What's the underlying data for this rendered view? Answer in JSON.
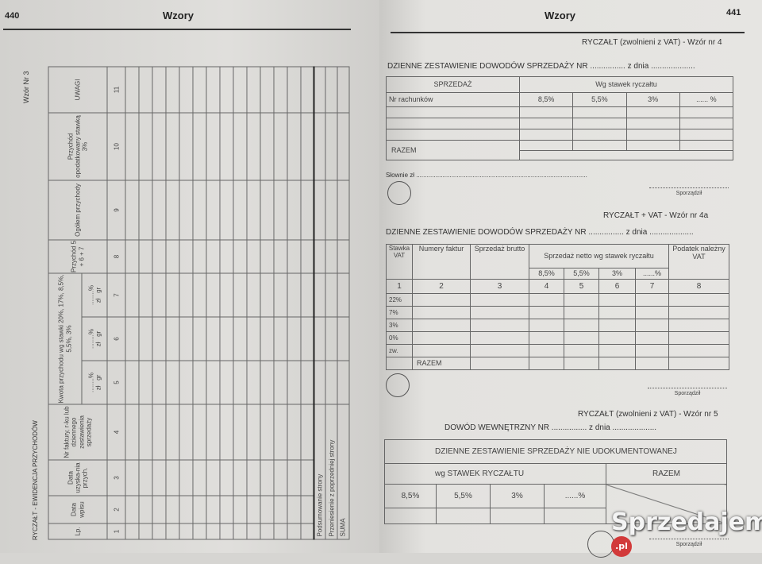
{
  "left_page": {
    "page_number": "440",
    "title": "Wzory",
    "form_id": "Wzór Nr 3",
    "form_title": "RYCZAŁT - EWIDENCJA PRZYCHODÓW",
    "columns": [
      "Lp.",
      "Data wpisu",
      "Data uzyska-nia przych.",
      "Nr faktury, r-ku lub dziennego zestawienia sprzedaży",
      "Przychód 5 + 6 + 7",
      "Ogółem przychody",
      "Przychód opodatkowany stawką 3%",
      "UWAGI"
    ],
    "group_header": "Kwota przychodu wg stawki 20%, 17%, 8,5%, 5,5%, 3%",
    "sub_header": {
      "rate": "........%",
      "zl": "zł",
      "gr": "gr"
    },
    "numbers": [
      "1",
      "2",
      "3",
      "4",
      "5",
      "6",
      "7",
      "8",
      "9",
      "10",
      "11"
    ],
    "summary_rows": [
      "Podsumowanie strony",
      "Przeniesienie z poprzedniej strony",
      "SUMA"
    ]
  },
  "right_page": {
    "page_number": "441",
    "title": "Wzory",
    "form4": {
      "label": "RYCZAŁT (zwolnieni z VAT)  -  Wzór nr 4",
      "heading": "DZIENNE ZESTAWIENIE DOWODÓW SPRZEDAŻY NR ................ z dnia ....................",
      "col_sales": "SPRZEDAŻ",
      "col_rates": "Wg  stawek  ryczałtu",
      "row_invoices": "Nr rachunków",
      "rates": [
        "8,5%",
        "5,5%",
        "3%",
        "...... %"
      ],
      "total": "RAZEM",
      "in_words": "Słownie zł  .................................................................................................",
      "signed": "Sporządził"
    },
    "form4a": {
      "label": "RYCZAŁT  +  VAT  -  Wzór nr 4a",
      "heading": "DZIENNE ZESTAWIENIE DOWODÓW SPRZEDAŻY NR ................ z dnia ....................",
      "col_vat_rate": "Stawka VAT",
      "col_invoices": "Numery faktur",
      "col_gross": "Sprzedaż brutto",
      "col_net": "Sprzedaż netto wg stawek ryczałtu",
      "col_tax": "Podatek należny VAT",
      "rates": [
        "8,5%",
        "5,5%",
        "3%",
        "......%"
      ],
      "numbers": [
        "1",
        "2",
        "3",
        "4",
        "5",
        "6",
        "7",
        "8"
      ],
      "vat_rows": [
        "22%",
        "7%",
        "3%",
        "0%",
        "zw."
      ],
      "total": "RAZEM",
      "signed": "Sporządził"
    },
    "form5": {
      "label": "RYCZAŁT (zwolnieni z VAT)  -  Wzór nr 5",
      "heading": "DOWÓD WEWNĘTRZNY NR ................ z dnia ....................",
      "title": "DZIENNE ZESTAWIENIE SPRZEDAŻY NIE UDOKUMENTOWANEJ",
      "col_rates": "wg STAWEK RYCZAŁTU",
      "col_total": "RAZEM",
      "rates": [
        "8,5%",
        "5,5%",
        "3%",
        "......%"
      ],
      "signed": "Sporządził"
    }
  },
  "watermark": {
    "text": "Sprzedajemy",
    "badge": ".pl",
    "color": "#d23a3a"
  }
}
